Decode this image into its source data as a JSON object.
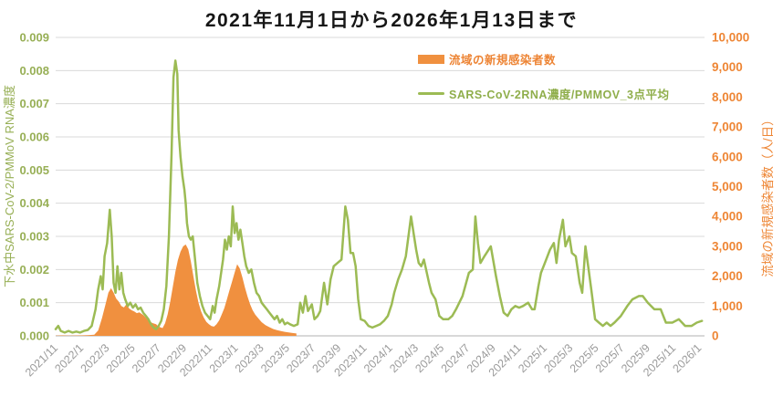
{
  "chart": {
    "title": "2021年11月1日から2026年1月13日まで",
    "left_axis_title": "下水中SARS-CoV-2/PMMoV RNA濃度",
    "right_axis_title": "流域の新規感染者数（人/日）",
    "legend": [
      {
        "label": "流域の新規感染者数",
        "swatch": "filled-rect",
        "color": "#F0903F"
      },
      {
        "label": "SARS-CoV-2RNA濃度/PMMOV_3点平均",
        "swatch": "line",
        "color": "#9CBB54"
      }
    ]
  },
  "colors": {
    "rna_line": "#9CBB54",
    "cases_fill": "#F0903F",
    "left_tick_text": "#97AF55",
    "right_tick_text": "#EE8635",
    "x_tick_text": "#9B9B9B",
    "gridline": "#DADADA",
    "axis_line": "#C0C0C0",
    "title_text": "#161616"
  },
  "chart_data": {
    "type": "combo",
    "title": "2021年11月1日から2026年1月13日まで",
    "x_unit": "months since 2021/11",
    "x_range": [
      0,
      50.4
    ],
    "x_tick_step_months": 2,
    "x_tick_labels": [
      "2021/11",
      "2022/1",
      "2022/3",
      "2022/5",
      "2022/7",
      "2022/9",
      "2022/11",
      "2023/1",
      "2023/3",
      "2023/5",
      "2023/7",
      "2023/9",
      "2023/11",
      "2024/1",
      "2024/3",
      "2024/5",
      "2024/7",
      "2024/9",
      "2024/11",
      "2025/1",
      "2025/3",
      "2025/5",
      "2025/7",
      "2025/9",
      "2025/11",
      "2026/1"
    ],
    "grid": true,
    "legend_position": "inside-top-right",
    "left_axis": {
      "min": 0,
      "max": 0.009,
      "step": 0.001,
      "tick_labels": [
        "0.000",
        "0.001",
        "0.002",
        "0.003",
        "0.004",
        "0.005",
        "0.006",
        "0.007",
        "0.008",
        "0.009"
      ]
    },
    "right_axis": {
      "min": 0,
      "max": 10000,
      "step": 1000,
      "tick_labels": [
        "0",
        "1,000",
        "2,000",
        "3,000",
        "4,000",
        "5,000",
        "6,000",
        "7,000",
        "8,000",
        "9,000",
        "10,000"
      ]
    },
    "series": [
      {
        "name": "流域の新規感染者数",
        "type": "area",
        "axis": "right",
        "color": "#F0903F",
        "points": [
          [
            0,
            10
          ],
          [
            0.5,
            15
          ],
          [
            1.0,
            10
          ],
          [
            1.5,
            12
          ],
          [
            2.0,
            15
          ],
          [
            2.5,
            20
          ],
          [
            3.0,
            40
          ],
          [
            3.3,
            180
          ],
          [
            3.6,
            600
          ],
          [
            3.9,
            1100
          ],
          [
            4.1,
            1450
          ],
          [
            4.3,
            1600
          ],
          [
            4.5,
            1450
          ],
          [
            4.7,
            1250
          ],
          [
            4.9,
            1150
          ],
          [
            5.1,
            1000
          ],
          [
            5.3,
            950
          ],
          [
            5.5,
            1060
          ],
          [
            5.7,
            920
          ],
          [
            5.9,
            860
          ],
          [
            6.1,
            820
          ],
          [
            6.3,
            760
          ],
          [
            6.5,
            790
          ],
          [
            6.8,
            700
          ],
          [
            7.0,
            610
          ],
          [
            7.2,
            510
          ],
          [
            7.5,
            430
          ],
          [
            7.8,
            390
          ],
          [
            8.0,
            310
          ],
          [
            8.3,
            260
          ],
          [
            8.5,
            420
          ],
          [
            8.7,
            720
          ],
          [
            8.9,
            1150
          ],
          [
            9.1,
            1650
          ],
          [
            9.3,
            2150
          ],
          [
            9.5,
            2550
          ],
          [
            9.7,
            2820
          ],
          [
            9.9,
            3000
          ],
          [
            10.1,
            3060
          ],
          [
            10.3,
            2900
          ],
          [
            10.5,
            2500
          ],
          [
            10.7,
            2000
          ],
          [
            10.9,
            1500
          ],
          [
            11.1,
            1100
          ],
          [
            11.3,
            820
          ],
          [
            11.5,
            620
          ],
          [
            11.7,
            470
          ],
          [
            11.9,
            390
          ],
          [
            12.1,
            330
          ],
          [
            12.3,
            310
          ],
          [
            12.5,
            390
          ],
          [
            12.7,
            520
          ],
          [
            12.9,
            720
          ],
          [
            13.1,
            930
          ],
          [
            13.3,
            1220
          ],
          [
            13.5,
            1520
          ],
          [
            13.7,
            1820
          ],
          [
            13.9,
            2120
          ],
          [
            14.1,
            2400
          ],
          [
            14.3,
            2260
          ],
          [
            14.5,
            1960
          ],
          [
            14.7,
            1620
          ],
          [
            14.9,
            1320
          ],
          [
            15.1,
            1060
          ],
          [
            15.3,
            860
          ],
          [
            15.5,
            710
          ],
          [
            15.8,
            560
          ],
          [
            16.0,
            460
          ],
          [
            16.3,
            360
          ],
          [
            16.6,
            290
          ],
          [
            16.9,
            230
          ],
          [
            17.2,
            190
          ],
          [
            17.5,
            160
          ],
          [
            17.8,
            135
          ],
          [
            18.1,
            115
          ],
          [
            18.4,
            95
          ],
          [
            18.7,
            80
          ]
        ]
      },
      {
        "name": "SARS-CoV-2RNA濃度/PMMOV_3点平均",
        "type": "line",
        "axis": "left",
        "color": "#9CBB54",
        "points": [
          [
            0,
            0.0002
          ],
          [
            0.2,
            0.0003
          ],
          [
            0.4,
            0.00015
          ],
          [
            0.7,
            0.0001
          ],
          [
            1.0,
            0.00015
          ],
          [
            1.3,
            0.0001
          ],
          [
            1.6,
            0.00013
          ],
          [
            1.9,
            0.0001
          ],
          [
            2.2,
            0.00015
          ],
          [
            2.5,
            0.00018
          ],
          [
            2.8,
            0.0003
          ],
          [
            3.1,
            0.0008
          ],
          [
            3.3,
            0.0014
          ],
          [
            3.5,
            0.0018
          ],
          [
            3.65,
            0.0014
          ],
          [
            3.8,
            0.0024
          ],
          [
            4.0,
            0.0028
          ],
          [
            4.2,
            0.0038
          ],
          [
            4.35,
            0.003
          ],
          [
            4.5,
            0.0016
          ],
          [
            4.65,
            0.0013
          ],
          [
            4.8,
            0.0021
          ],
          [
            4.95,
            0.0014
          ],
          [
            5.1,
            0.0019
          ],
          [
            5.25,
            0.0013
          ],
          [
            5.4,
            0.0011
          ],
          [
            5.6,
            0.0009
          ],
          [
            5.8,
            0.001
          ],
          [
            6.0,
            0.00085
          ],
          [
            6.2,
            0.00095
          ],
          [
            6.4,
            0.0008
          ],
          [
            6.6,
            0.00085
          ],
          [
            6.8,
            0.0007
          ],
          [
            7.0,
            0.0006
          ],
          [
            7.2,
            0.0005
          ],
          [
            7.4,
            0.00035
          ],
          [
            7.6,
            0.00025
          ],
          [
            7.8,
            0.0002
          ],
          [
            8.0,
            0.0003
          ],
          [
            8.2,
            0.00045
          ],
          [
            8.4,
            0.0008
          ],
          [
            8.6,
            0.0015
          ],
          [
            8.8,
            0.003
          ],
          [
            9.0,
            0.0055
          ],
          [
            9.15,
            0.0078
          ],
          [
            9.3,
            0.0083
          ],
          [
            9.45,
            0.0079
          ],
          [
            9.55,
            0.0062
          ],
          [
            9.7,
            0.0054
          ],
          [
            9.85,
            0.0048
          ],
          [
            10.0,
            0.0044
          ],
          [
            10.1,
            0.004
          ],
          [
            10.2,
            0.0034
          ],
          [
            10.35,
            0.003
          ],
          [
            10.5,
            0.0029
          ],
          [
            10.65,
            0.003
          ],
          [
            10.8,
            0.0024
          ],
          [
            11.0,
            0.0016
          ],
          [
            11.2,
            0.0012
          ],
          [
            11.4,
            0.0009
          ],
          [
            11.6,
            0.0007
          ],
          [
            11.8,
            0.0006
          ],
          [
            12.0,
            0.0005
          ],
          [
            12.2,
            0.0009
          ],
          [
            12.35,
            0.0007
          ],
          [
            12.5,
            0.0011
          ],
          [
            12.7,
            0.0015
          ],
          [
            12.85,
            0.0019
          ],
          [
            13.0,
            0.0023
          ],
          [
            13.15,
            0.0029
          ],
          [
            13.3,
            0.0026
          ],
          [
            13.45,
            0.003
          ],
          [
            13.6,
            0.0027
          ],
          [
            13.75,
            0.0039
          ],
          [
            13.9,
            0.0031
          ],
          [
            14.05,
            0.0034
          ],
          [
            14.2,
            0.0029
          ],
          [
            14.35,
            0.0032
          ],
          [
            14.5,
            0.0028
          ],
          [
            14.65,
            0.0024
          ],
          [
            14.8,
            0.0021
          ],
          [
            15.0,
            0.0019
          ],
          [
            15.2,
            0.002
          ],
          [
            15.4,
            0.0016
          ],
          [
            15.6,
            0.0013
          ],
          [
            15.8,
            0.0012
          ],
          [
            16.0,
            0.001
          ],
          [
            16.2,
            0.0009
          ],
          [
            16.4,
            0.0008
          ],
          [
            16.6,
            0.0007
          ],
          [
            16.8,
            0.0006
          ],
          [
            17.0,
            0.0005
          ],
          [
            17.2,
            0.0006
          ],
          [
            17.4,
            0.0004
          ],
          [
            17.6,
            0.0005
          ],
          [
            17.8,
            0.00035
          ],
          [
            18.0,
            0.0004
          ],
          [
            18.2,
            0.00035
          ],
          [
            18.5,
            0.0003
          ],
          [
            18.8,
            0.00035
          ],
          [
            19.0,
            0.001
          ],
          [
            19.2,
            0.0007
          ],
          [
            19.4,
            0.0012
          ],
          [
            19.6,
            0.00075
          ],
          [
            19.9,
            0.00095
          ],
          [
            20.1,
            0.0005
          ],
          [
            20.35,
            0.0006
          ],
          [
            20.55,
            0.00075
          ],
          [
            20.85,
            0.0016
          ],
          [
            21.1,
            0.00095
          ],
          [
            21.35,
            0.0017
          ],
          [
            21.6,
            0.0021
          ],
          [
            21.9,
            0.0022
          ],
          [
            22.2,
            0.0023
          ],
          [
            22.5,
            0.0039
          ],
          [
            22.7,
            0.0035
          ],
          [
            22.9,
            0.0025
          ],
          [
            23.1,
            0.0025
          ],
          [
            23.3,
            0.0021
          ],
          [
            23.5,
            0.0011
          ],
          [
            23.7,
            0.0005
          ],
          [
            24.0,
            0.00045
          ],
          [
            24.3,
            0.0003
          ],
          [
            24.6,
            0.00025
          ],
          [
            24.9,
            0.0003
          ],
          [
            25.2,
            0.00035
          ],
          [
            25.5,
            0.00045
          ],
          [
            25.8,
            0.0006
          ],
          [
            26.1,
            0.00095
          ],
          [
            26.3,
            0.0013
          ],
          [
            26.6,
            0.0017
          ],
          [
            26.9,
            0.002
          ],
          [
            27.2,
            0.0024
          ],
          [
            27.6,
            0.0036
          ],
          [
            27.8,
            0.0031
          ],
          [
            28.0,
            0.0026
          ],
          [
            28.2,
            0.0022
          ],
          [
            28.4,
            0.0021
          ],
          [
            28.6,
            0.0023
          ],
          [
            29.0,
            0.0016
          ],
          [
            29.2,
            0.0013
          ],
          [
            29.5,
            0.0011
          ],
          [
            29.8,
            0.0006
          ],
          [
            30.1,
            0.0005
          ],
          [
            30.5,
            0.0005
          ],
          [
            30.8,
            0.0006
          ],
          [
            31.1,
            0.0008
          ],
          [
            31.6,
            0.0012
          ],
          [
            32.1,
            0.0019
          ],
          [
            32.4,
            0.002
          ],
          [
            32.6,
            0.0036
          ],
          [
            32.8,
            0.0028
          ],
          [
            33.0,
            0.0022
          ],
          [
            33.3,
            0.0024
          ],
          [
            33.8,
            0.0027
          ],
          [
            34.2,
            0.0018
          ],
          [
            34.5,
            0.0012
          ],
          [
            34.8,
            0.0007
          ],
          [
            35.1,
            0.0006
          ],
          [
            35.4,
            0.0008
          ],
          [
            35.7,
            0.0009
          ],
          [
            36.0,
            0.00085
          ],
          [
            36.3,
            0.0009
          ],
          [
            36.7,
            0.001
          ],
          [
            37.0,
            0.0008
          ],
          [
            37.2,
            0.0008
          ],
          [
            37.5,
            0.0015
          ],
          [
            37.7,
            0.0019
          ],
          [
            38.0,
            0.0022
          ],
          [
            38.4,
            0.0026
          ],
          [
            38.7,
            0.0028
          ],
          [
            38.9,
            0.0022
          ],
          [
            39.1,
            0.0029
          ],
          [
            39.4,
            0.0035
          ],
          [
            39.6,
            0.0027
          ],
          [
            39.9,
            0.003
          ],
          [
            40.1,
            0.0025
          ],
          [
            40.4,
            0.0024
          ],
          [
            40.7,
            0.0016
          ],
          [
            40.9,
            0.0013
          ],
          [
            41.15,
            0.0027
          ],
          [
            41.4,
            0.002
          ],
          [
            41.6,
            0.0014
          ],
          [
            41.9,
            0.0005
          ],
          [
            42.2,
            0.0004
          ],
          [
            42.5,
            0.0003
          ],
          [
            42.8,
            0.0004
          ],
          [
            43.1,
            0.0003
          ],
          [
            43.4,
            0.0004
          ],
          [
            43.9,
            0.0006
          ],
          [
            44.4,
            0.0009
          ],
          [
            44.8,
            0.0011
          ],
          [
            45.3,
            0.0012
          ],
          [
            45.6,
            0.0012
          ],
          [
            46.0,
            0.001
          ],
          [
            46.5,
            0.0008
          ],
          [
            47.0,
            0.0008
          ],
          [
            47.4,
            0.0004
          ],
          [
            47.9,
            0.0004
          ],
          [
            48.4,
            0.0005
          ],
          [
            48.9,
            0.0003
          ],
          [
            49.4,
            0.0003
          ],
          [
            49.8,
            0.0004
          ],
          [
            50.2,
            0.00045
          ]
        ]
      }
    ]
  }
}
